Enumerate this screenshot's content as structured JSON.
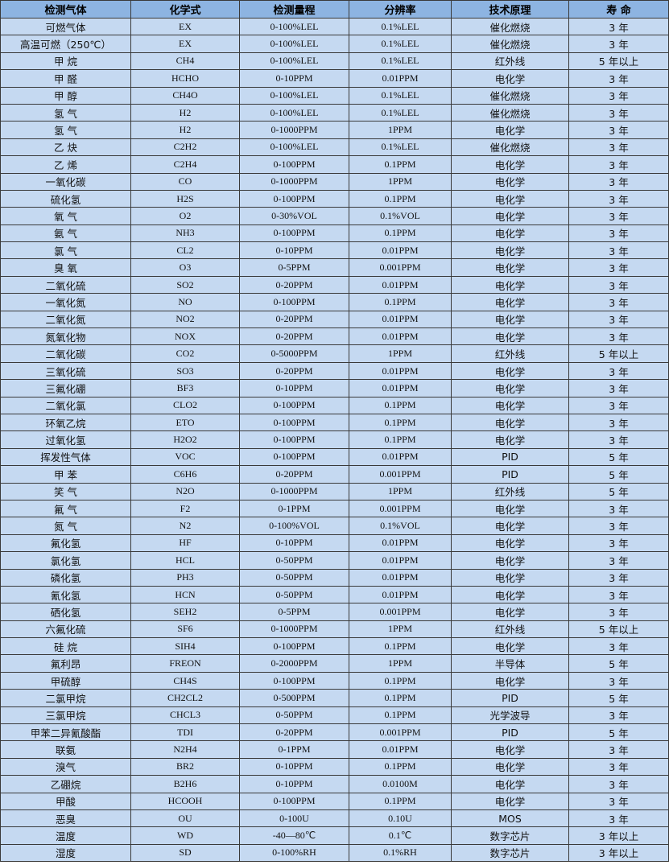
{
  "header": [
    "检测气体",
    "化学式",
    "检测量程",
    "分辨率",
    "技术原理",
    "寿 命"
  ],
  "colors": {
    "header_bg": "#8db4e2",
    "row_bg": "#c5d9f1"
  },
  "rows": [
    [
      "可燃气体",
      "EX",
      "0-100%LEL",
      "0.1%LEL",
      "催化燃烧",
      "3 年"
    ],
    [
      "高温可燃（250℃）",
      "EX",
      "0-100%LEL",
      "0.1%LEL",
      "催化燃烧",
      "3 年"
    ],
    [
      "甲 烷",
      "CH4",
      "0-100%LEL",
      "0.1%LEL",
      "红外线",
      "5 年以上"
    ],
    [
      "甲 醛",
      "HCHO",
      "0-10PPM",
      "0.01PPM",
      "电化学",
      "3 年"
    ],
    [
      "甲 醇",
      "CH4O",
      "0-100%LEL",
      "0.1%LEL",
      "催化燃烧",
      "3 年"
    ],
    [
      "氢 气",
      "H2",
      "0-100%LEL",
      "0.1%LEL",
      "催化燃烧",
      "3 年"
    ],
    [
      "氢 气",
      "H2",
      "0-1000PPM",
      "1PPM",
      "电化学",
      "3 年"
    ],
    [
      "乙 炔",
      "C2H2",
      "0-100%LEL",
      "0.1%LEL",
      "催化燃烧",
      "3 年"
    ],
    [
      "乙 烯",
      "C2H4",
      "0-100PPM",
      "0.1PPM",
      "电化学",
      "3 年"
    ],
    [
      "一氧化碳",
      "CO",
      "0-1000PPM",
      "1PPM",
      "电化学",
      "3 年"
    ],
    [
      "硫化氢",
      "H2S",
      "0-100PPM",
      "0.1PPM",
      "电化学",
      "3 年"
    ],
    [
      "氧 气",
      "O2",
      "0-30%VOL",
      "0.1%VOL",
      "电化学",
      "3 年"
    ],
    [
      "氨 气",
      "NH3",
      "0-100PPM",
      "0.1PPM",
      "电化学",
      "3 年"
    ],
    [
      "氯 气",
      "CL2",
      "0-10PPM",
      "0.01PPM",
      "电化学",
      "3 年"
    ],
    [
      "臭 氧",
      "O3",
      "0-5PPM",
      "0.001PPM",
      "电化学",
      "3 年"
    ],
    [
      "二氧化硫",
      "SO2",
      "0-20PPM",
      "0.01PPM",
      "电化学",
      "3 年"
    ],
    [
      "一氧化氮",
      "NO",
      "0-100PPM",
      "0.1PPM",
      "电化学",
      "3 年"
    ],
    [
      "二氧化氮",
      "NO2",
      "0-20PPM",
      "0.01PPM",
      "电化学",
      "3 年"
    ],
    [
      "氮氧化物",
      "NOX",
      "0-20PPM",
      "0.01PPM",
      "电化学",
      "3 年"
    ],
    [
      "二氧化碳",
      "CO2",
      "0-5000PPM",
      "1PPM",
      "红外线",
      "5 年以上"
    ],
    [
      "三氧化硫",
      "SO3",
      "0-20PPM",
      "0.01PPM",
      "电化学",
      "3 年"
    ],
    [
      "三氟化硼",
      "BF3",
      "0-10PPM",
      "0.01PPM",
      "电化学",
      "3 年"
    ],
    [
      "二氧化氯",
      "CLO2",
      "0-100PPM",
      "0.1PPM",
      "电化学",
      "3 年"
    ],
    [
      "环氧乙烷",
      "ETO",
      "0-100PPM",
      "0.1PPM",
      "电化学",
      "3 年"
    ],
    [
      "过氧化氢",
      "H2O2",
      "0-100PPM",
      "0.1PPM",
      "电化学",
      "3 年"
    ],
    [
      "挥发性气体",
      "VOC",
      "0-100PPM",
      "0.01PPM",
      "PID",
      "5 年"
    ],
    [
      "甲 苯",
      "C6H6",
      "0-20PPM",
      "0.001PPM",
      "PID",
      "5 年"
    ],
    [
      "笑 气",
      "N2O",
      "0-1000PPM",
      "1PPM",
      "红外线",
      "5 年"
    ],
    [
      "氟 气",
      "F2",
      "0-1PPM",
      "0.001PPM",
      "电化学",
      "3 年"
    ],
    [
      "氮 气",
      "N2",
      "0-100%VOL",
      "0.1%VOL",
      "电化学",
      "3 年"
    ],
    [
      "氟化氢",
      "HF",
      "0-10PPM",
      "0.01PPM",
      "电化学",
      "3 年"
    ],
    [
      "氯化氢",
      "HCL",
      "0-50PPM",
      "0.01PPM",
      "电化学",
      "3 年"
    ],
    [
      "磷化氢",
      "PH3",
      "0-50PPM",
      "0.01PPM",
      "电化学",
      "3 年"
    ],
    [
      "氰化氢",
      "HCN",
      "0-50PPM",
      "0.01PPM",
      "电化学",
      "3 年"
    ],
    [
      "硒化氢",
      "SEH2",
      "0-5PPM",
      "0.001PPM",
      "电化学",
      "3 年"
    ],
    [
      "六氟化硫",
      "SF6",
      "0-1000PPM",
      "1PPM",
      "红外线",
      "5 年以上"
    ],
    [
      "硅 烷",
      "SIH4",
      "0-100PPM",
      "0.1PPM",
      "电化学",
      "3 年"
    ],
    [
      "氟利昂",
      "FREON",
      "0-2000PPM",
      "1PPM",
      "半导体",
      "5 年"
    ],
    [
      "甲硫醇",
      "CH4S",
      "0-100PPM",
      "0.1PPM",
      "电化学",
      "3 年"
    ],
    [
      "二氯甲烷",
      "CH2CL2",
      "0-500PPM",
      "0.1PPM",
      "PID",
      "5 年"
    ],
    [
      "三氯甲烷",
      "CHCL3",
      "0-50PPM",
      "0.1PPM",
      "光学波导",
      "3 年"
    ],
    [
      "甲苯二异氰酸酯",
      "TDI",
      "0-20PPM",
      "0.001PPM",
      "PID",
      "5 年"
    ],
    [
      "联氨",
      "N2H4",
      "0-1PPM",
      "0.01PPM",
      "电化学",
      "3 年"
    ],
    [
      "溴气",
      "BR2",
      "0-10PPM",
      "0.1PPM",
      "电化学",
      "3 年"
    ],
    [
      "乙硼烷",
      "B2H6",
      "0-10PPM",
      "0.0100M",
      "电化学",
      "3 年"
    ],
    [
      "甲酸",
      "HCOOH",
      "0-100PPM",
      "0.1PPM",
      "电化学",
      "3 年"
    ],
    [
      "恶臭",
      "OU",
      "0-100U",
      "0.10U",
      "MOS",
      "3 年"
    ],
    [
      "温度",
      "WD",
      "-40—80℃",
      "0.1℃",
      "数字芯片",
      "3 年以上"
    ],
    [
      "湿度",
      "SD",
      "0-100%RH",
      "0.1%RH",
      "数字芯片",
      "3 年以上"
    ]
  ]
}
